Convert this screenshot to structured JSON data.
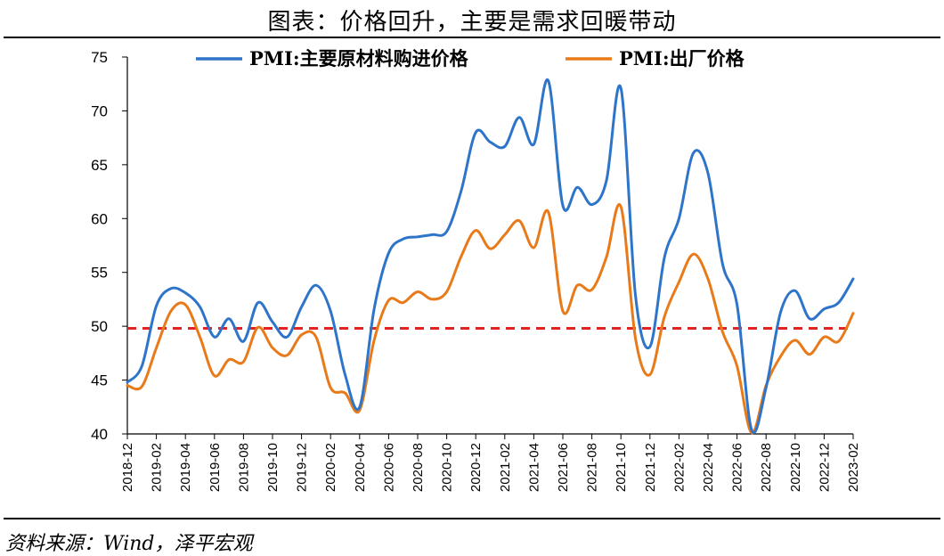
{
  "title": "图表：价格回升，主要是需求回暖带动",
  "source": "资料来源：Wind，泽平宏观",
  "colors": {
    "series1": "#2E75C9",
    "series2": "#E87A1A",
    "refline": "#E32222",
    "axis": "#000000"
  },
  "chart_data": {
    "type": "line",
    "ylim": [
      40,
      75
    ],
    "yticks": [
      40,
      45,
      50,
      55,
      60,
      65,
      70,
      75
    ],
    "xticks": [
      "2018-12",
      "2019-02",
      "2019-04",
      "2019-06",
      "2019-08",
      "2019-10",
      "2019-12",
      "2020-02",
      "2020-04",
      "2020-06",
      "2020-08",
      "2020-10",
      "2020-12",
      "2021-02",
      "2021-04",
      "2021-06",
      "2021-08",
      "2021-10",
      "2021-12",
      "2022-02",
      "2022-04",
      "2022-06",
      "2022-08",
      "2022-10",
      "2022-12",
      "2023-02"
    ],
    "x": [
      "2018-12",
      "2019-01",
      "2019-02",
      "2019-03",
      "2019-04",
      "2019-05",
      "2019-06",
      "2019-07",
      "2019-08",
      "2019-09",
      "2019-10",
      "2019-11",
      "2019-12",
      "2020-01",
      "2020-02",
      "2020-03",
      "2020-04",
      "2020-05",
      "2020-06",
      "2020-07",
      "2020-08",
      "2020-09",
      "2020-10",
      "2020-11",
      "2020-12",
      "2021-01",
      "2021-02",
      "2021-03",
      "2021-04",
      "2021-05",
      "2021-06",
      "2021-07",
      "2021-08",
      "2021-09",
      "2021-10",
      "2021-11",
      "2021-12",
      "2022-01",
      "2022-02",
      "2022-03",
      "2022-04",
      "2022-05",
      "2022-06",
      "2022-07",
      "2022-08",
      "2022-09",
      "2022-10",
      "2022-11",
      "2022-12",
      "2023-01",
      "2023-02"
    ],
    "reference_line": 49.8,
    "legend_position": "top",
    "series": [
      {
        "name": "PMI:主要原材料购进价格",
        "values": [
          44.8,
          46.3,
          51.9,
          53.5,
          53.1,
          51.8,
          49.0,
          50.7,
          48.6,
          52.2,
          50.4,
          49.0,
          51.8,
          53.8,
          51.4,
          45.5,
          42.5,
          51.6,
          56.8,
          58.1,
          58.3,
          58.5,
          58.8,
          62.6,
          68.0,
          67.1,
          66.7,
          69.4,
          66.9,
          72.8,
          61.2,
          62.9,
          61.3,
          63.5,
          72.1,
          52.9,
          48.1,
          56.4,
          60.0,
          66.1,
          64.2,
          55.8,
          52.0,
          40.4,
          44.3,
          51.3,
          53.3,
          50.7,
          51.6,
          52.2,
          54.4
        ]
      },
      {
        "name": "PMI:出厂价格",
        "values": [
          44.5,
          44.4,
          48.0,
          51.4,
          52.0,
          49.0,
          45.4,
          46.9,
          46.7,
          49.9,
          48.0,
          47.3,
          49.2,
          49.0,
          44.3,
          43.8,
          42.2,
          48.7,
          52.4,
          52.2,
          53.2,
          52.5,
          53.2,
          56.5,
          58.9,
          57.2,
          58.5,
          59.8,
          57.3,
          60.6,
          51.4,
          53.8,
          53.4,
          56.4,
          61.1,
          48.9,
          45.5,
          50.9,
          54.1,
          56.7,
          54.4,
          49.5,
          46.3,
          40.1,
          44.5,
          47.2,
          48.7,
          47.4,
          49.0,
          48.6,
          51.2
        ]
      }
    ]
  }
}
